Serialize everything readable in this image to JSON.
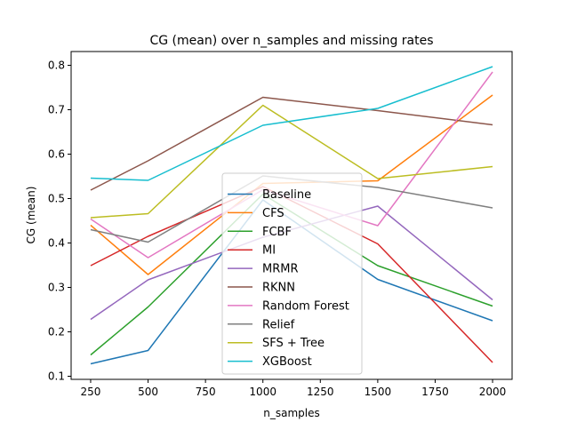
{
  "chart_data": {
    "type": "line",
    "title": "CG (mean) over n_samples and missing rates",
    "xlabel": "n_samples",
    "ylabel": "CG (mean)",
    "x": [
      250,
      500,
      1000,
      1500,
      2000
    ],
    "xlim": [
      165,
      2085
    ],
    "ylim": [
      0.093,
      0.831
    ],
    "xticks": [
      250,
      500,
      750,
      1000,
      1250,
      1500,
      1750,
      2000
    ],
    "yticks": [
      0.1,
      0.2,
      0.3,
      0.4,
      0.5,
      0.6,
      0.7,
      0.8
    ],
    "grid": false,
    "legend_position": "lower center",
    "series": [
      {
        "name": "Baseline",
        "color": "#1f77b4",
        "values": [
          0.128,
          0.158,
          0.497,
          0.318,
          0.225
        ]
      },
      {
        "name": "CFS",
        "color": "#ff7f0e",
        "values": [
          0.44,
          0.329,
          0.534,
          0.54,
          0.733
        ]
      },
      {
        "name": "FCBF",
        "color": "#2ca02c",
        "values": [
          0.148,
          0.256,
          0.51,
          0.349,
          0.258
        ]
      },
      {
        "name": "MI",
        "color": "#d62728",
        "values": [
          0.349,
          0.415,
          0.527,
          0.398,
          0.131
        ]
      },
      {
        "name": "MRMR",
        "color": "#9467bd",
        "values": [
          0.228,
          0.317,
          0.413,
          0.483,
          0.272
        ]
      },
      {
        "name": "RKNN",
        "color": "#8c564b",
        "values": [
          0.519,
          0.585,
          0.728,
          0.698,
          0.666
        ]
      },
      {
        "name": "Random Forest",
        "color": "#e377c2",
        "values": [
          0.454,
          0.367,
          0.52,
          0.439,
          0.785
        ]
      },
      {
        "name": "Relief",
        "color": "#7f7f7f",
        "values": [
          0.43,
          0.402,
          0.551,
          0.525,
          0.479
        ]
      },
      {
        "name": "SFS + Tree",
        "color": "#bcbd22",
        "values": [
          0.457,
          0.466,
          0.71,
          0.545,
          0.572
        ]
      },
      {
        "name": "XGBoost",
        "color": "#17becf",
        "values": [
          0.546,
          0.541,
          0.665,
          0.703,
          0.797
        ]
      }
    ]
  }
}
